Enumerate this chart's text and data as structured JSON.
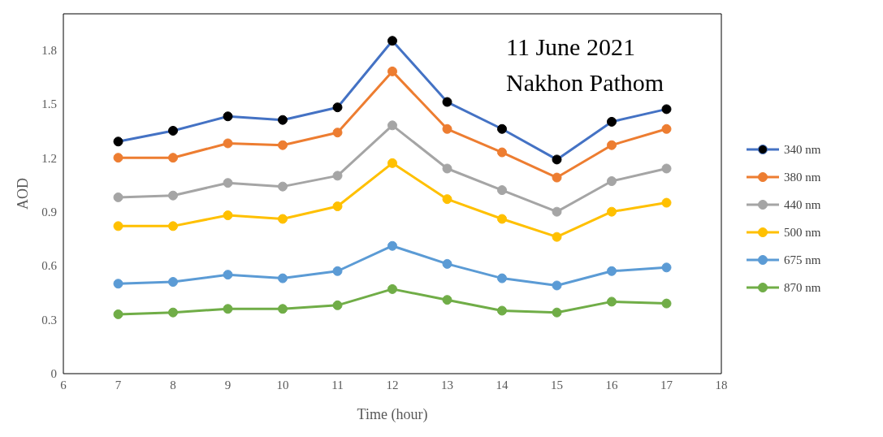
{
  "chart_data": {
    "type": "line",
    "xlabel": "Time (hour)",
    "ylabel": "AOD",
    "annotations": [
      "11 June 2021",
      "Nakhon Pathom"
    ],
    "x": [
      7,
      8,
      9,
      10,
      11,
      12,
      13,
      14,
      15,
      16,
      17
    ],
    "xlim": [
      6,
      18
    ],
    "xticks": [
      6,
      7,
      8,
      9,
      10,
      11,
      12,
      13,
      14,
      15,
      16,
      17,
      18
    ],
    "ylim": [
      0,
      2
    ],
    "yticks": [
      0,
      0.3,
      0.6,
      0.9,
      1.2,
      1.5,
      1.8
    ],
    "grid": false,
    "legend": "right",
    "marker": "circle",
    "line_style": "solid",
    "series": [
      {
        "name": "340 nm",
        "color": "#4472c4",
        "values": [
          1.29,
          1.35,
          1.43,
          1.41,
          1.48,
          1.85,
          1.51,
          1.36,
          1.19,
          1.4,
          1.47
        ]
      },
      {
        "name": "380 nm",
        "color": "#ed7d31",
        "values": [
          1.2,
          1.2,
          1.28,
          1.27,
          1.34,
          1.68,
          1.36,
          1.23,
          1.09,
          1.27,
          1.36
        ]
      },
      {
        "name": "440 nm",
        "color": "#a5a5a5",
        "values": [
          0.98,
          0.99,
          1.06,
          1.04,
          1.1,
          1.38,
          1.14,
          1.02,
          0.9,
          1.07,
          1.14
        ]
      },
      {
        "name": "500 nm",
        "color": "#ffc000",
        "values": [
          0.82,
          0.82,
          0.88,
          0.86,
          0.93,
          1.17,
          0.97,
          0.86,
          0.76,
          0.9,
          0.95
        ]
      },
      {
        "name": "675 nm",
        "color": "#5b9bd5",
        "values": [
          0.5,
          0.51,
          0.55,
          0.53,
          0.57,
          0.71,
          0.61,
          0.53,
          0.49,
          0.57,
          0.59
        ]
      },
      {
        "name": "870 nm",
        "color": "#70ad47",
        "values": [
          0.33,
          0.34,
          0.36,
          0.36,
          0.38,
          0.47,
          0.41,
          0.35,
          0.34,
          0.4,
          0.39
        ]
      }
    ]
  }
}
